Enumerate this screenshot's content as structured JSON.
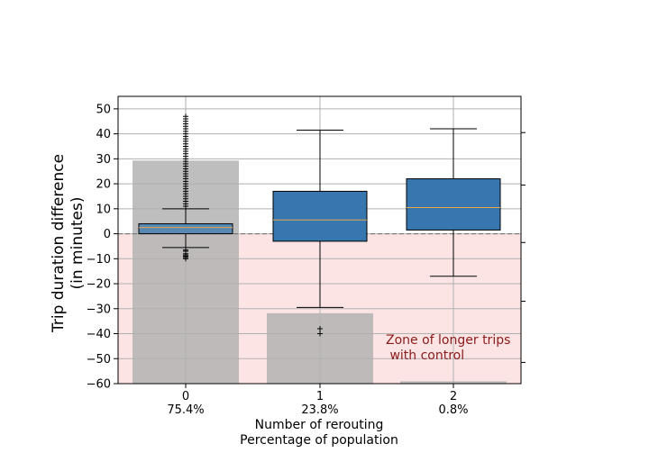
{
  "chart_data": {
    "type": "box",
    "title": "",
    "ylabel": "Trip duration difference\n(in minutes)",
    "xlabel": "Number of rerouting\nPercentage of population",
    "ylim": [
      -60,
      55
    ],
    "yticks": [
      -60,
      -50,
      -40,
      -30,
      -20,
      -10,
      0,
      10,
      20,
      30,
      40,
      50
    ],
    "grid": true,
    "categories": [
      "0",
      "1",
      "2"
    ],
    "percentages": [
      "75.4%",
      "23.8%",
      "0.8%"
    ],
    "population_share": [
      0.754,
      0.238,
      0.008
    ],
    "boxes": [
      {
        "category": "0",
        "whisker_low": -5.5,
        "q1": 0,
        "median": 2.5,
        "q3": 4,
        "whisker_high": 10,
        "outliers": [
          -10,
          -9.5,
          -9,
          -8.5,
          -8,
          -7,
          -6.5,
          11,
          12,
          13,
          14,
          15,
          16,
          17,
          18,
          19,
          20,
          21,
          22,
          23,
          24,
          25,
          26,
          27,
          28,
          29,
          30,
          31,
          32,
          33,
          34,
          35,
          36,
          37,
          38,
          39,
          40,
          41,
          42,
          43,
          44,
          45,
          46,
          47
        ]
      },
      {
        "category": "1",
        "whisker_low": -29.5,
        "q1": -3,
        "median": 5.5,
        "q3": 17,
        "whisker_high": 41.5,
        "outliers": [
          -38,
          -40
        ]
      },
      {
        "category": "2",
        "whisker_low": -17,
        "q1": 1.5,
        "median": 10.5,
        "q3": 22,
        "whisker_high": 42,
        "outliers": []
      }
    ],
    "annotation": "Zone of longer trips\n with control",
    "colors": {
      "box_fill": "#3776ae",
      "median": "#e8a54a",
      "population_bar": "#b3b3b3",
      "zone_fill": "#fde4e4",
      "zone_text": "#8b1a1a",
      "grid": "#b0b0b0"
    }
  }
}
